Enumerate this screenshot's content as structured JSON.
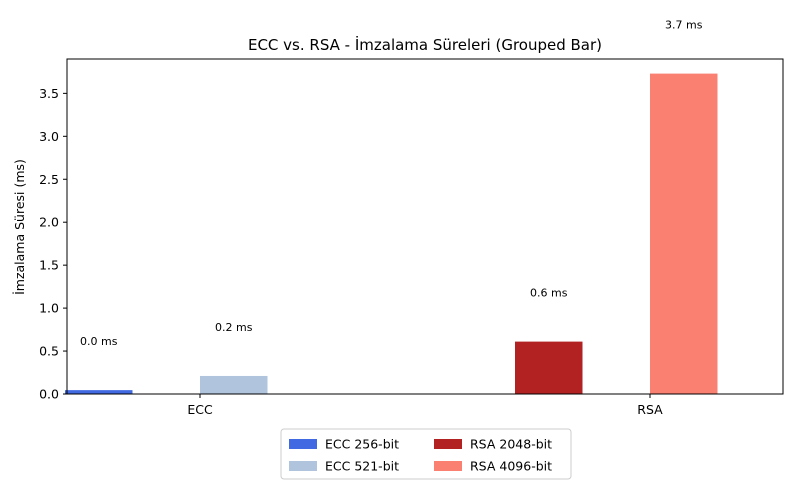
{
  "chart_data": {
    "type": "bar",
    "title": "ECC vs. RSA - İmzalama Süreleri (Grouped Bar)",
    "ylabel": "İmzalama Süresi (ms)",
    "xlabel": "",
    "categories": [
      "ECC",
      "RSA"
    ],
    "ylim": [
      0,
      3.9
    ],
    "yticks": [
      "0.0",
      "0.5",
      "1.0",
      "1.5",
      "2.0",
      "2.5",
      "3.0",
      "3.5"
    ],
    "series": [
      {
        "name": "ECC 256-bit",
        "color": "#4169e1",
        "category": "ECC",
        "slot": 0,
        "value": 0.045,
        "label": "0.0 ms"
      },
      {
        "name": "ECC 521-bit",
        "color": "#b0c4de",
        "category": "ECC",
        "slot": 2,
        "value": 0.21,
        "label": "0.2 ms"
      },
      {
        "name": "RSA 2048-bit",
        "color": "#b22222",
        "category": "RSA",
        "slot": 0,
        "value": 0.61,
        "label": "0.6 ms"
      },
      {
        "name": "RSA 4096-bit",
        "color": "#fa8072",
        "category": "RSA",
        "slot": 2,
        "value": 3.73,
        "label": "3.7 ms"
      }
    ],
    "legend": "bottom-center",
    "grid": false
  }
}
